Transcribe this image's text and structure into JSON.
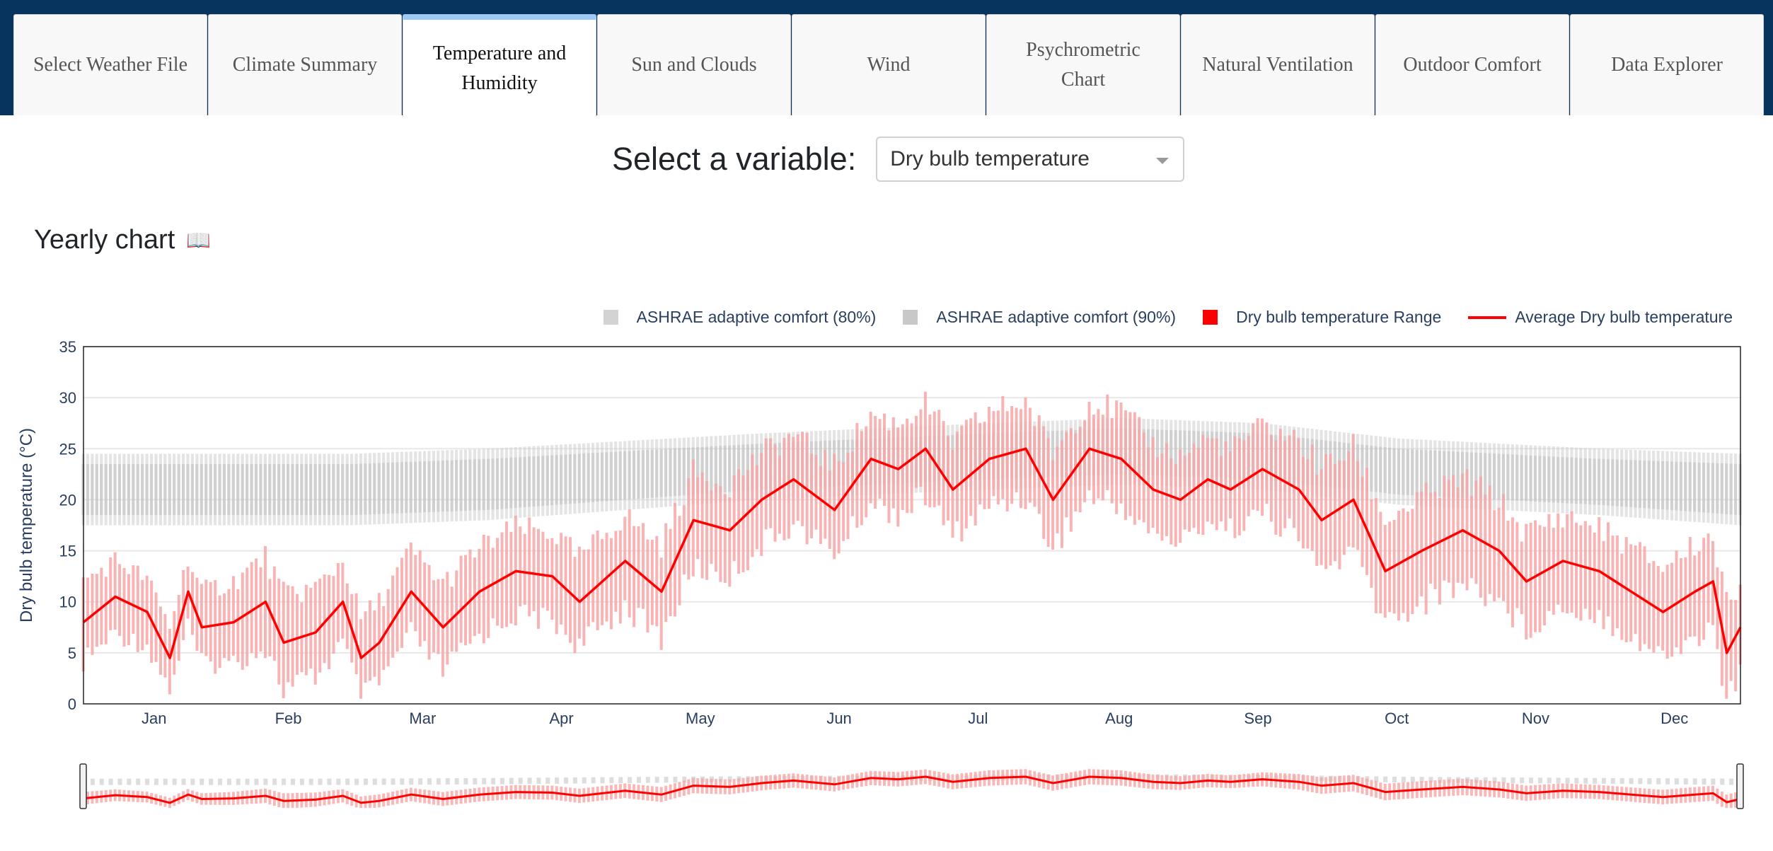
{
  "tabs": [
    {
      "label": "Select Weather File",
      "active": false
    },
    {
      "label": "Climate Summary",
      "active": false
    },
    {
      "label": "Temperature and Humidity",
      "active": true
    },
    {
      "label": "Sun and Clouds",
      "active": false
    },
    {
      "label": "Wind",
      "active": false
    },
    {
      "label": "Psychrometric Chart",
      "active": false
    },
    {
      "label": "Natural Ventilation",
      "active": false
    },
    {
      "label": "Outdoor Comfort",
      "active": false
    },
    {
      "label": "Data Explorer",
      "active": false
    }
  ],
  "selector": {
    "label": "Select a variable:",
    "value": "Dry bulb temperature"
  },
  "section": {
    "title": "Yearly chart",
    "icon": "book-icon"
  },
  "colors": {
    "topbar": "#07335f",
    "active_tab_accent": "#9ec9f2",
    "range": "#ff0000",
    "range_fill": "#f7a7a7",
    "average": "#ff0000",
    "comfort_80": "#cfcfcf",
    "comfort_90": "#bdbdbd"
  },
  "legend": [
    {
      "label": "ASHRAE adaptive comfort (80%)",
      "kind": "box",
      "color": "#d3d3d3"
    },
    {
      "label": "ASHRAE adaptive comfort (90%)",
      "kind": "box",
      "color": "#c8c8c8"
    },
    {
      "label": "Dry bulb temperature Range",
      "kind": "box",
      "color": "#ff0000"
    },
    {
      "label": "Average Dry bulb temperature",
      "kind": "line",
      "color": "#ff0000"
    }
  ],
  "chart_data": {
    "type": "bar",
    "ylabel": "Dry bulb temperature (°C)",
    "ylim": [
      0,
      35
    ],
    "yticks": [
      0,
      5,
      10,
      15,
      20,
      25,
      30,
      35
    ],
    "xlim_days": [
      1,
      365
    ],
    "month_ticks": [
      "Jan",
      "Feb",
      "Mar",
      "Apr",
      "May",
      "Jun",
      "Jul",
      "Aug",
      "Sep",
      "Oct",
      "Nov",
      "Dec"
    ],
    "grid": true,
    "legend_position": "top-right",
    "range_slider": true,
    "series": [
      {
        "name": "Average Dry bulb temperature",
        "type": "line",
        "x_day": [
          1,
          8,
          15,
          20,
          24,
          27,
          34,
          41,
          45,
          52,
          58,
          62,
          66,
          73,
          80,
          88,
          96,
          104,
          110,
          120,
          128,
          135,
          143,
          150,
          157,
          166,
          174,
          180,
          186,
          192,
          200,
          208,
          214,
          222,
          229,
          236,
          242,
          248,
          253,
          260,
          268,
          273,
          280,
          287,
          295,
          304,
          312,
          318,
          326,
          334,
          341,
          348,
          355,
          359,
          362,
          365
        ],
        "y": [
          8,
          10.5,
          9,
          4.5,
          11,
          7.5,
          8,
          10,
          6,
          7,
          10,
          4.5,
          6,
          11,
          7.5,
          11,
          13,
          12.5,
          10,
          14,
          11,
          18,
          17,
          20,
          22,
          19,
          24,
          23,
          25,
          21,
          24,
          25,
          20,
          25,
          24,
          21,
          20,
          22,
          21,
          23,
          21,
          18,
          20,
          13,
          15,
          17,
          15,
          12,
          14,
          13,
          11,
          9,
          11,
          12,
          5,
          7.5
        ]
      },
      {
        "name": "Dry bulb temperature Range",
        "type": "range",
        "x_day": [
          1,
          20,
          45,
          62,
          80,
          104,
          135,
          166,
          200,
          229,
          253,
          273,
          304,
          334,
          362
        ],
        "min": [
          5,
          3,
          4,
          3,
          6,
          8,
          12,
          17,
          19,
          20,
          17,
          12,
          9,
          7,
          3
        ],
        "max": [
          15,
          11,
          16,
          13,
          17,
          19,
          24,
          28,
          31,
          32,
          27,
          25,
          22,
          18,
          15
        ]
      },
      {
        "name": "ASHRAE adaptive comfort (80%)",
        "type": "band",
        "x_day": [
          1,
          60,
          90,
          150,
          200,
          229,
          260,
          290,
          334,
          365
        ],
        "lower": [
          17.5,
          17.5,
          18,
          20,
          21,
          21.5,
          21,
          19.5,
          18.5,
          17.5
        ],
        "upper": [
          24.5,
          24.5,
          25,
          26.5,
          27.5,
          28,
          27.5,
          26,
          25,
          24.5
        ]
      },
      {
        "name": "ASHRAE adaptive comfort (90%)",
        "type": "band",
        "x_day": [
          1,
          60,
          90,
          150,
          200,
          229,
          260,
          290,
          334,
          365
        ],
        "lower": [
          18.5,
          18.5,
          19,
          21,
          22,
          22.5,
          22,
          20.5,
          19.5,
          18.5
        ],
        "upper": [
          23.5,
          23.5,
          24,
          25.5,
          26.5,
          27,
          26.5,
          25,
          24,
          23.5
        ]
      }
    ]
  }
}
